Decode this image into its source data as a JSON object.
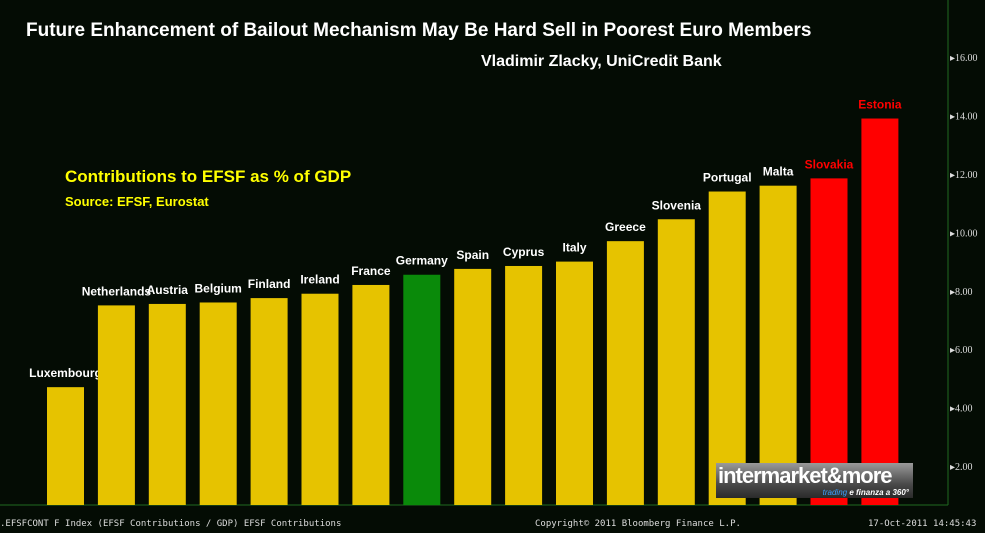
{
  "chart_data": {
    "type": "bar",
    "title": "Future Enhancement of Bailout Mechanism May Be  Hard Sell in Poorest Euro Members",
    "author": "Vladimir Zlacky, UniCredit Bank",
    "subtitle": "Contributions to EFSF as % of GDP",
    "source": "Source: EFSF, Eurostat",
    "categories": [
      "Luxembourg",
      "Netherlands",
      "Austria",
      "Belgium",
      "Finland",
      "Ireland",
      "France",
      "Germany",
      "Spain",
      "Cyprus",
      "Italy",
      "Greece",
      "Slovenia",
      "Portugal",
      "Malta",
      "Slovakia",
      "Estonia"
    ],
    "values": [
      4.7,
      7.5,
      7.55,
      7.6,
      7.75,
      7.9,
      8.2,
      8.55,
      8.75,
      8.85,
      9.0,
      9.7,
      10.45,
      11.4,
      11.6,
      11.85,
      13.9
    ],
    "colors": [
      "#e6c300",
      "#e6c300",
      "#e6c300",
      "#e6c300",
      "#e6c300",
      "#e6c300",
      "#e6c300",
      "#0a8a0a",
      "#e6c300",
      "#e6c300",
      "#e6c300",
      "#e6c300",
      "#e6c300",
      "#e6c300",
      "#e6c300",
      "#ff0000",
      "#ff0000"
    ],
    "label_colors": [
      "#ffffff",
      "#ffffff",
      "#ffffff",
      "#ffffff",
      "#ffffff",
      "#ffffff",
      "#ffffff",
      "#ffffff",
      "#ffffff",
      "#ffffff",
      "#ffffff",
      "#ffffff",
      "#ffffff",
      "#ffffff",
      "#ffffff",
      "#ff0000",
      "#ff0000"
    ],
    "y_ticks": [
      "2.00",
      "4.00",
      "6.00",
      "8.00",
      "10.00",
      "12.00",
      "14.00",
      "16.00"
    ],
    "y_tick_values": [
      2,
      4,
      6,
      8,
      10,
      12,
      14,
      16
    ],
    "ylim": [
      0.65,
      17.5
    ],
    "y_axis_side": "right",
    "grid": false,
    "xlabel": "",
    "ylabel": ""
  },
  "logo": {
    "main": "intermarket&more",
    "tag_accent": "trading",
    "tag_rest": " e finanza a 360°"
  },
  "footer": {
    "left": ".EFSFCONT F Index (EFSF Contributions / GDP) EFSF Contributions",
    "center": "Copyright© 2011 Bloomberg Finance L.P.",
    "right": "17-Oct-2011 14:45:43"
  }
}
